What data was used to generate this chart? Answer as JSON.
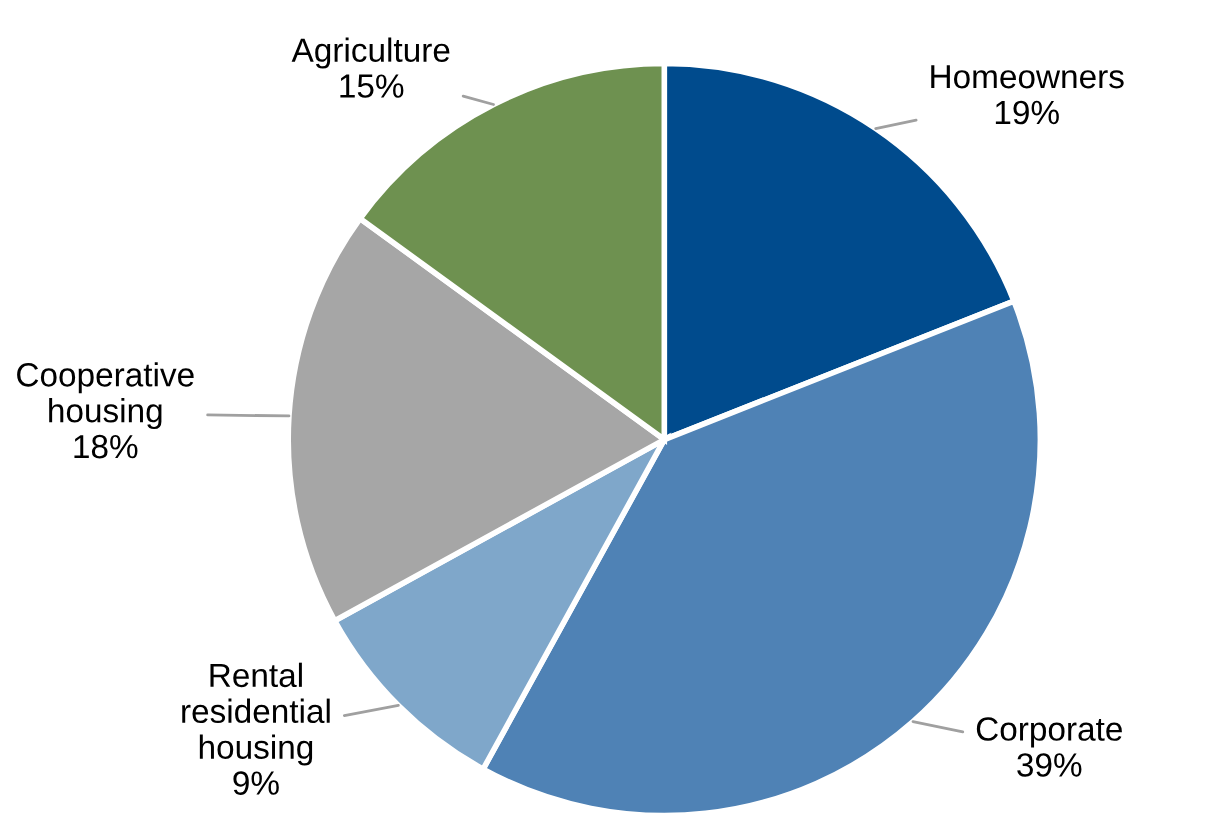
{
  "chart_data": {
    "type": "pie",
    "categories": [
      "Homeowners",
      "Corporate",
      "Rental\nresidential\nhousing",
      "Cooperative\nhousing",
      "Agriculture"
    ],
    "values": [
      19,
      39,
      9,
      18,
      15
    ],
    "value_labels": [
      "19%",
      "39%",
      "9%",
      "18%",
      "15%"
    ],
    "colors": [
      "#004b8d",
      "#4f82b5",
      "#7fa7ca",
      "#a6a6a6",
      "#6e9150"
    ],
    "legend": false
  }
}
